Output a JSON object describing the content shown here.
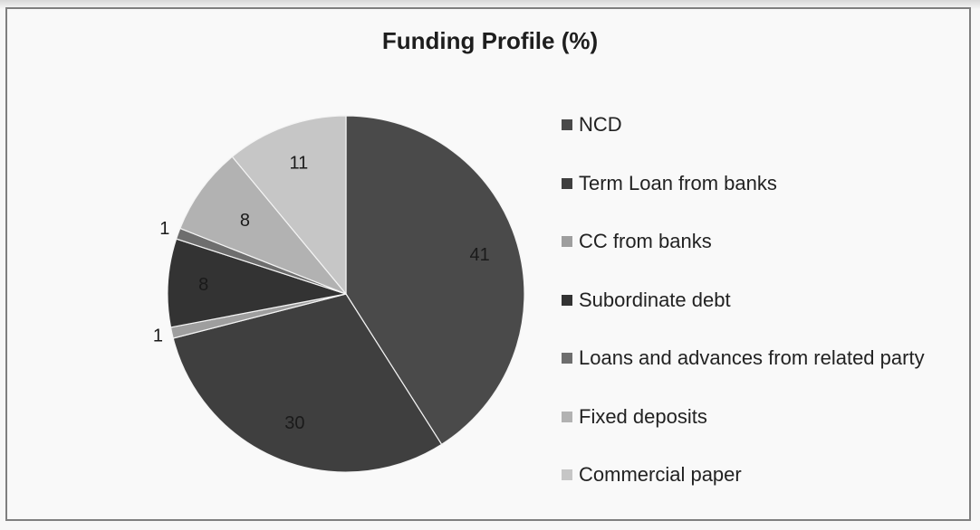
{
  "chart_data": {
    "type": "pie",
    "title": "Funding Profile (%)",
    "legend_position": "right",
    "categories": [
      "NCD",
      "Term Loan from banks",
      "CC from banks",
      "Subordinate debt",
      "Loans and advances from related party",
      "Fixed deposits",
      "Commercial paper"
    ],
    "values": [
      41,
      30,
      1,
      8,
      1,
      8,
      11
    ],
    "data_labels": [
      "41",
      "30",
      "1",
      "8",
      "1",
      "8",
      "11"
    ],
    "colors": [
      "#4a4a4a",
      "#3f3f3f",
      "#9e9e9e",
      "#333333",
      "#6e6e6e",
      "#b2b2b2",
      "#c6c6c6"
    ]
  }
}
